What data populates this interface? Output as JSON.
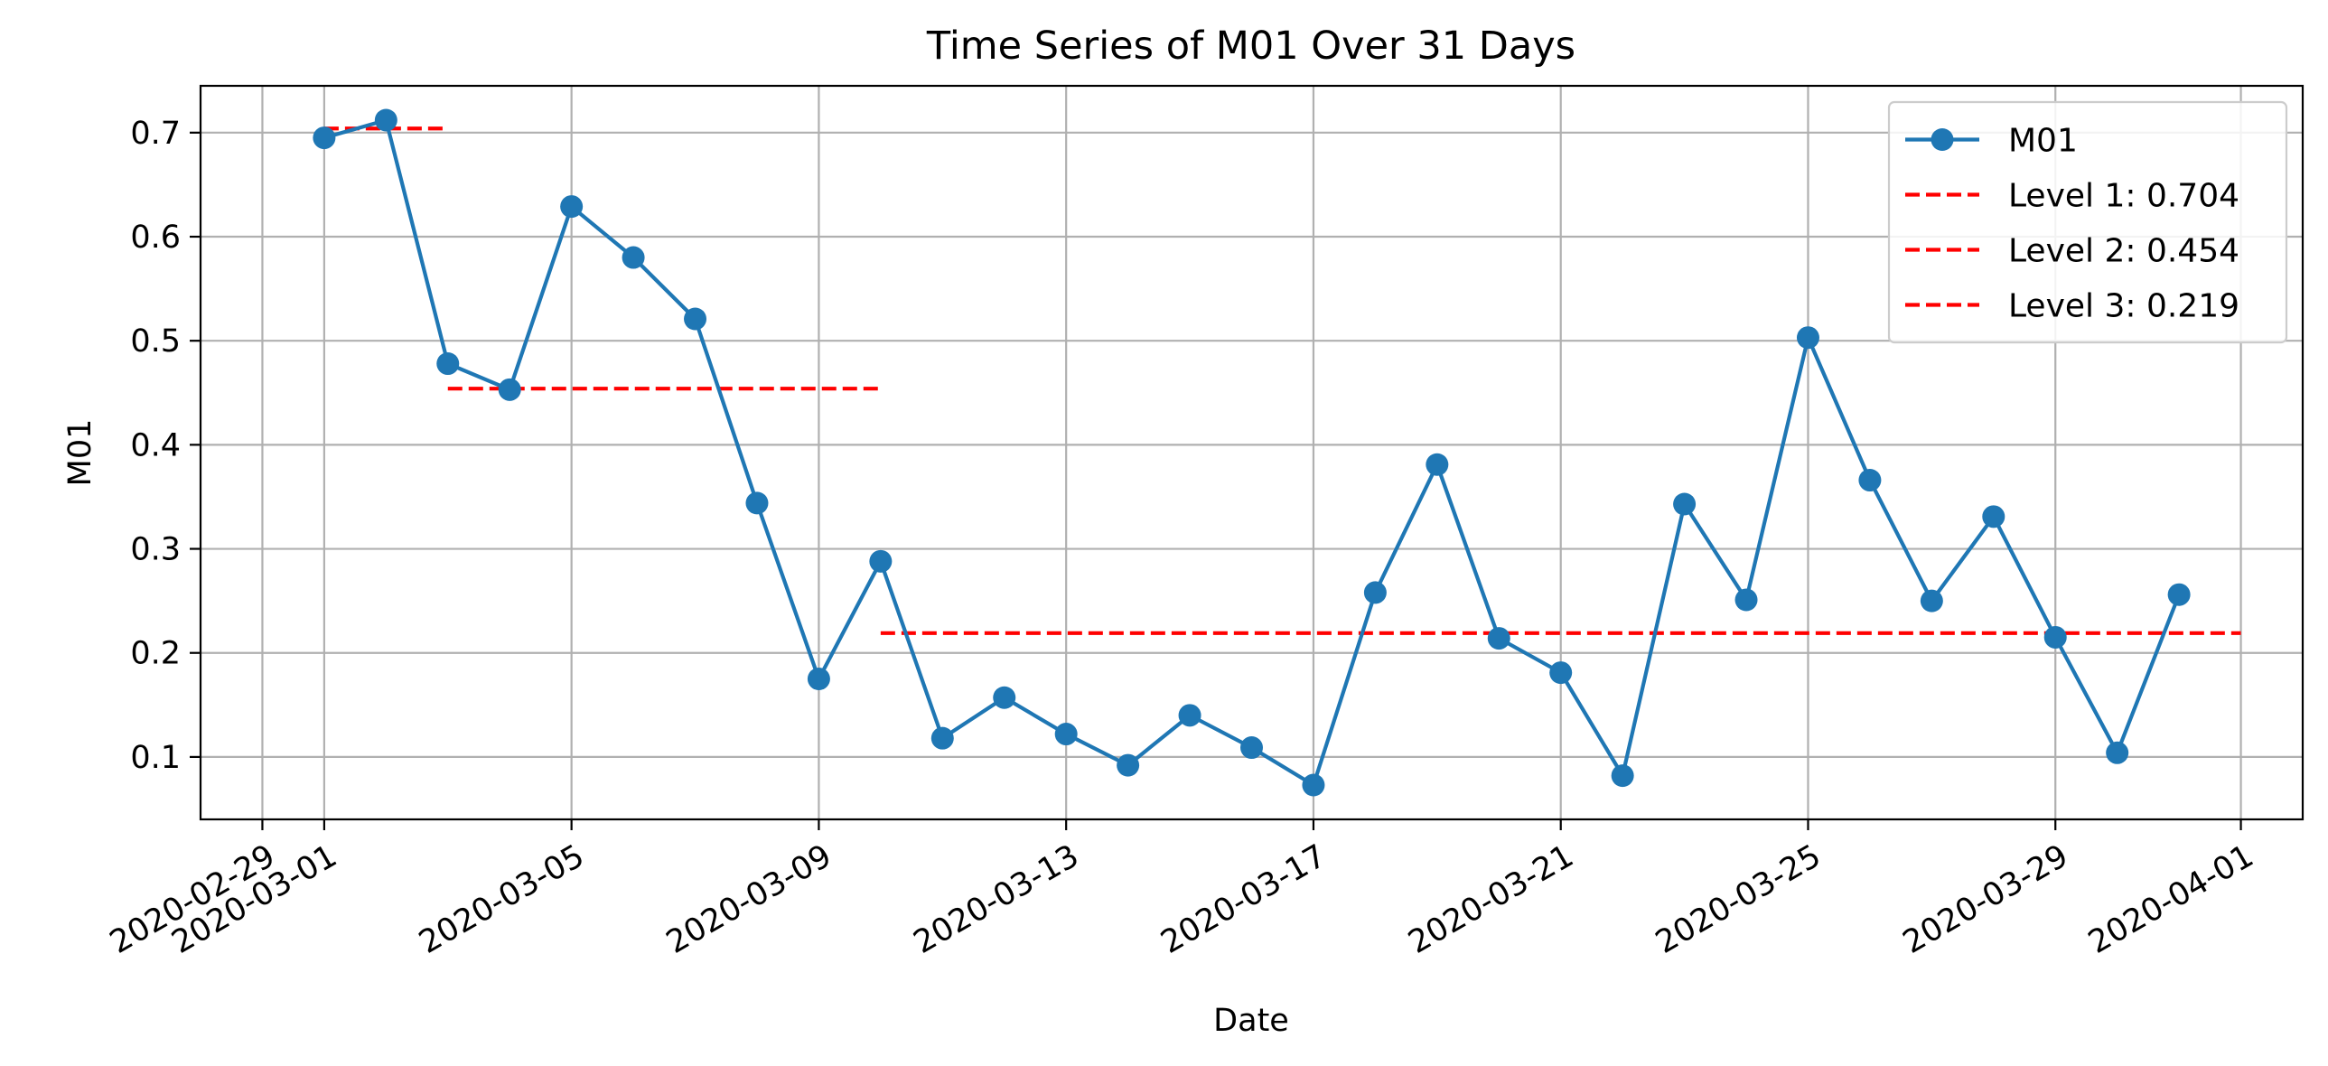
{
  "chart_data": {
    "type": "line",
    "title": "Time Series of M01 Over 31 Days",
    "xlabel": "Date",
    "ylabel": "M01",
    "x_axis": {
      "scale": "date",
      "range": [
        "2020-02-28",
        "2020-04-02"
      ],
      "ticks": [
        "2020-02-29",
        "2020-03-01",
        "2020-03-05",
        "2020-03-09",
        "2020-03-13",
        "2020-03-17",
        "2020-03-21",
        "2020-03-25",
        "2020-03-29",
        "2020-04-01"
      ]
    },
    "y_axis": {
      "range": [
        0.04,
        0.745
      ],
      "ticks": [
        "0.1",
        "0.2",
        "0.3",
        "0.4",
        "0.5",
        "0.6",
        "0.7"
      ]
    },
    "grid": true,
    "legend_position": "top-right",
    "series": [
      {
        "name": "M01",
        "color": "#1f77b4",
        "marker": "circle",
        "x": [
          "2020-03-01",
          "2020-03-02",
          "2020-03-03",
          "2020-03-04",
          "2020-03-05",
          "2020-03-06",
          "2020-03-07",
          "2020-03-08",
          "2020-03-09",
          "2020-03-10",
          "2020-03-11",
          "2020-03-12",
          "2020-03-13",
          "2020-03-14",
          "2020-03-15",
          "2020-03-16",
          "2020-03-17",
          "2020-03-18",
          "2020-03-19",
          "2020-03-20",
          "2020-03-21",
          "2020-03-22",
          "2020-03-23",
          "2020-03-24",
          "2020-03-25",
          "2020-03-26",
          "2020-03-27",
          "2020-03-28",
          "2020-03-29",
          "2020-03-30",
          "2020-03-31"
        ],
        "values": [
          0.695,
          0.712,
          0.478,
          0.453,
          0.629,
          0.58,
          0.521,
          0.344,
          0.175,
          0.288,
          0.118,
          0.157,
          0.122,
          0.092,
          0.14,
          0.109,
          0.073,
          0.258,
          0.381,
          0.214,
          0.181,
          0.082,
          0.343,
          0.251,
          0.503,
          0.366,
          0.25,
          0.331,
          0.215,
          0.104,
          0.256
        ]
      }
    ],
    "levels": [
      {
        "name": "Level 1: 0.704",
        "value": 0.704,
        "x_start": "2020-03-01",
        "x_end": "2020-03-03",
        "color": "#ff0000",
        "style": "dashed"
      },
      {
        "name": "Level 2: 0.454",
        "value": 0.454,
        "x_start": "2020-03-03",
        "x_end": "2020-03-10",
        "color": "#ff0000",
        "style": "dashed"
      },
      {
        "name": "Level 3: 0.219",
        "value": 0.219,
        "x_start": "2020-03-10",
        "x_end": "2020-04-01",
        "color": "#ff0000",
        "style": "dashed"
      }
    ]
  }
}
